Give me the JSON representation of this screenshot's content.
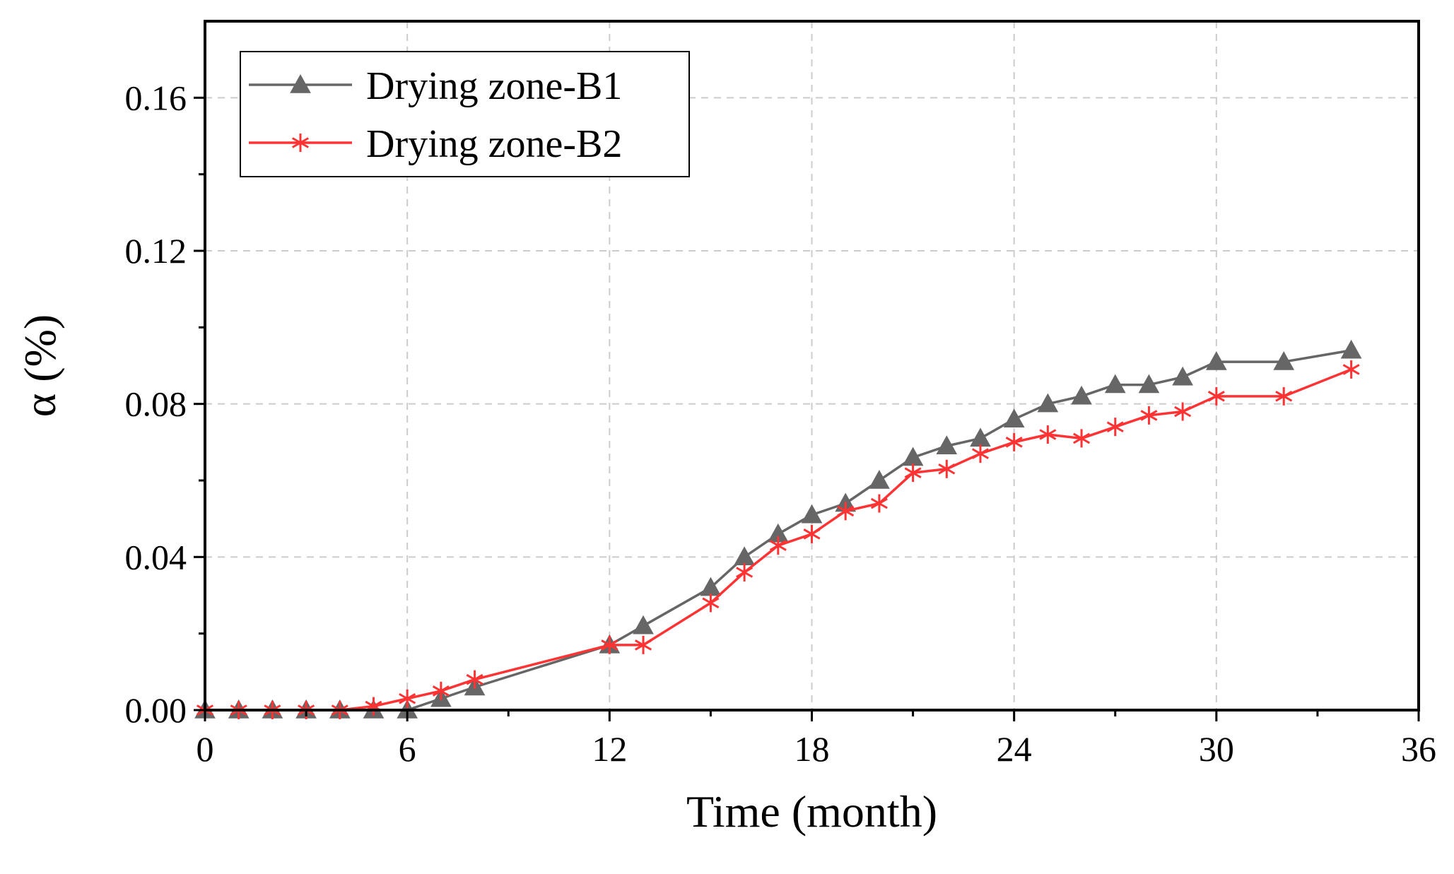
{
  "chart_data": {
    "type": "line",
    "title": "",
    "xlabel": "Time (month)",
    "ylabel": "α (%)",
    "xlim": [
      0,
      36
    ],
    "ylim": [
      0,
      0.18
    ],
    "xticks": [
      "0",
      "6",
      "12",
      "18",
      "24",
      "30",
      "36"
    ],
    "yticks": [
      "0.00",
      "0.04",
      "0.08",
      "0.12",
      "0.16"
    ],
    "grid": true,
    "legend_position": "top-left",
    "series": [
      {
        "name": "Drying zone-B1",
        "color": "#666666",
        "marker": "triangle",
        "x": [
          0,
          1,
          2,
          3,
          4,
          5,
          6,
          7,
          8,
          12,
          13,
          15,
          16,
          17,
          18,
          19,
          20,
          21,
          22,
          23,
          24,
          25,
          26,
          27,
          28,
          29,
          30,
          32,
          34
        ],
        "values": [
          0.0,
          0.0,
          0.0,
          0.0,
          0.0,
          0.0,
          0.0,
          0.003,
          0.006,
          0.017,
          0.022,
          0.032,
          0.04,
          0.046,
          0.051,
          0.054,
          0.06,
          0.066,
          0.069,
          0.071,
          0.076,
          0.08,
          0.082,
          0.085,
          0.085,
          0.087,
          0.091,
          0.091,
          0.094
        ]
      },
      {
        "name": "Drying zone-B2",
        "color": "#ff3333",
        "marker": "asterisk",
        "x": [
          0,
          1,
          2,
          3,
          4,
          5,
          6,
          7,
          8,
          12,
          13,
          15,
          16,
          17,
          18,
          19,
          20,
          21,
          22,
          23,
          24,
          25,
          26,
          27,
          28,
          29,
          30,
          32,
          34
        ],
        "values": [
          0.0,
          0.0,
          0.0,
          0.0,
          0.0,
          0.001,
          0.003,
          0.005,
          0.008,
          0.017,
          0.017,
          0.028,
          0.036,
          0.043,
          0.046,
          0.052,
          0.054,
          0.062,
          0.063,
          0.067,
          0.07,
          0.072,
          0.071,
          0.074,
          0.077,
          0.078,
          0.082,
          0.082,
          0.089
        ]
      }
    ]
  }
}
